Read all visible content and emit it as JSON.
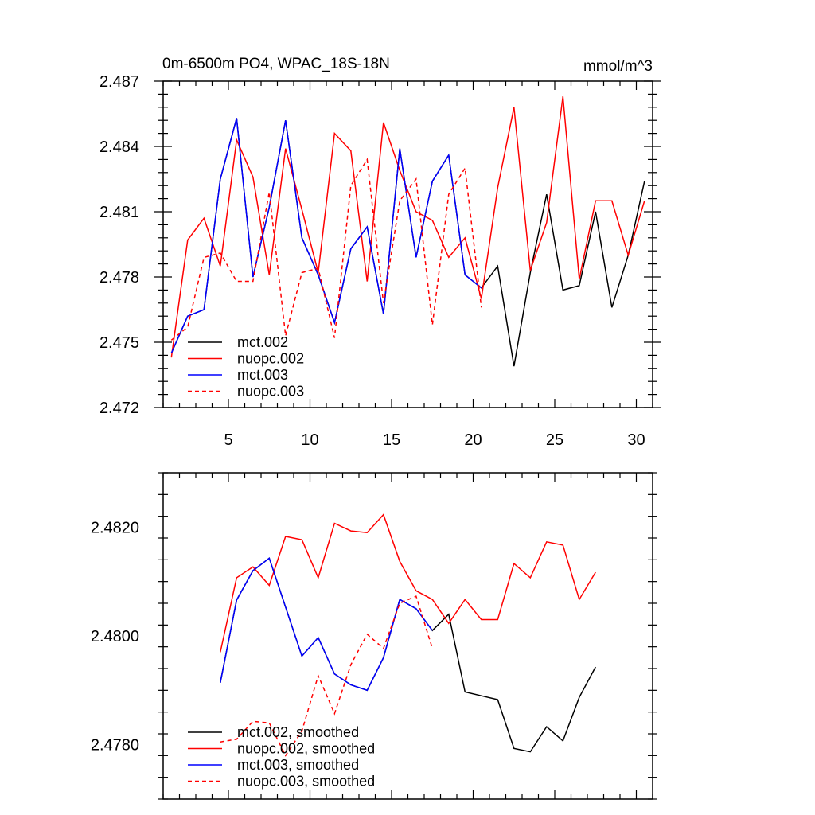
{
  "chart_data": [
    {
      "type": "line",
      "title": "0m-6500m PO4, WPAC_18S-18N",
      "units": "mmol/m^3",
      "xlim": [
        1,
        31
      ],
      "ylim": [
        2.472,
        2.487
      ],
      "x_ticks": [
        5,
        10,
        15,
        20,
        25,
        30
      ],
      "y_ticks": [
        2.472,
        2.475,
        2.478,
        2.481,
        2.484,
        2.487
      ],
      "y_tick_labels": [
        "2.472",
        "2.475",
        "2.478",
        "2.481",
        "2.484",
        "2.487"
      ],
      "legend": "bottom-left",
      "series": [
        {
          "name": "mct.002",
          "color": "#000000",
          "dash": "solid",
          "x": [
            1.5,
            2.5,
            3.5,
            4.5,
            5.5,
            6.5,
            7.5,
            8.5,
            9.5,
            10.5,
            11.5,
            12.5,
            13.5,
            14.5,
            15.5,
            16.5,
            17.5,
            18.5,
            19.5,
            20.5,
            21.5,
            22.5,
            23.5,
            24.5,
            25.5,
            26.5,
            27.5,
            28.5,
            29.5,
            30.5
          ],
          "y": [
            2.4745,
            2.4762,
            2.4765,
            2.4825,
            2.4853,
            2.478,
            2.4812,
            2.4852,
            2.4798,
            2.4781,
            2.4759,
            2.4793,
            2.4803,
            2.4763,
            2.4839,
            2.4789,
            2.4824,
            2.4836,
            2.4781,
            2.4775,
            2.4785,
            2.4739,
            2.4782,
            2.4818,
            2.4774,
            2.4776,
            2.481,
            2.4766,
            2.479,
            2.4824
          ]
        },
        {
          "name": "nuopc.002",
          "color": "#ff0000",
          "dash": "solid",
          "x": [
            1.5,
            2.5,
            3.5,
            4.5,
            5.5,
            6.5,
            7.5,
            8.5,
            9.5,
            10.5,
            11.5,
            12.5,
            13.5,
            14.5,
            15.5,
            16.5,
            17.5,
            18.5,
            19.5,
            20.5,
            21.5,
            22.5,
            23.5,
            24.5,
            25.5,
            26.5,
            27.5,
            28.5,
            29.5,
            30.5
          ],
          "y": [
            2.4743,
            2.4797,
            2.4807,
            2.4785,
            2.4843,
            2.4826,
            2.4781,
            2.4839,
            2.4811,
            2.4782,
            2.4846,
            2.4838,
            2.4778,
            2.4851,
            2.4829,
            2.481,
            2.4806,
            2.4789,
            2.4798,
            2.477,
            2.4821,
            2.4858,
            2.4783,
            2.4805,
            2.4863,
            2.4779,
            2.4815,
            2.4815,
            2.479,
            2.4815
          ]
        },
        {
          "name": "mct.003",
          "color": "#0000ff",
          "dash": "solid",
          "x": [
            1.5,
            2.5,
            3.5,
            4.5,
            5.5,
            6.5,
            7.5,
            8.5,
            9.5,
            10.5,
            11.5,
            12.5,
            13.5,
            14.5,
            15.5,
            16.5,
            17.5,
            18.5,
            19.5,
            20.5
          ],
          "y": [
            2.4745,
            2.4762,
            2.4765,
            2.4825,
            2.4853,
            2.478,
            2.4812,
            2.4852,
            2.4798,
            2.4781,
            2.4759,
            2.4793,
            2.4803,
            2.4763,
            2.4839,
            2.4789,
            2.4824,
            2.4836,
            2.4781,
            2.4775
          ]
        },
        {
          "name": "nuopc.003",
          "color": "#ff0000",
          "dash": "dashed",
          "x": [
            1.5,
            2.5,
            3.5,
            4.5,
            5.5,
            6.5,
            7.5,
            8.5,
            9.5,
            10.5,
            11.5,
            12.5,
            13.5,
            14.5,
            15.5,
            16.5,
            17.5,
            18.5,
            19.5,
            20.5
          ],
          "y": [
            2.4751,
            2.4757,
            2.4789,
            2.4791,
            2.4778,
            2.4778,
            2.4819,
            2.4753,
            2.4782,
            2.4784,
            2.4752,
            2.4822,
            2.4834,
            2.4768,
            2.4815,
            2.4825,
            2.4758,
            2.4818,
            2.483,
            2.4766
          ]
        }
      ]
    },
    {
      "type": "line",
      "title": "",
      "units": "",
      "xlim": [
        1,
        31
      ],
      "ylim": [
        2.477,
        2.483
      ],
      "x_ticks": [
        5,
        10,
        15,
        20,
        25,
        30
      ],
      "y_ticks": [
        2.478,
        2.48,
        2.482
      ],
      "y_tick_labels": [
        "2.4780",
        "2.4800",
        "2.4820"
      ],
      "legend": "bottom-left",
      "series": [
        {
          "name": "mct.002, smoothed",
          "color": "#000000",
          "dash": "solid",
          "x": [
            4.5,
            5.5,
            6.5,
            7.5,
            8.5,
            9.5,
            10.5,
            11.5,
            12.5,
            13.5,
            14.5,
            15.5,
            16.5,
            17.5,
            18.5,
            19.5,
            20.5,
            21.5,
            22.5,
            23.5,
            24.5,
            25.5,
            26.5,
            27.5
          ],
          "y": [
            2.47914,
            2.48066,
            2.4812,
            2.48143,
            2.48053,
            2.47963,
            2.47997,
            2.4793,
            2.4791,
            2.479,
            2.4796,
            2.48067,
            2.4805,
            2.4801,
            2.4804,
            2.47897,
            2.4789,
            2.47883,
            2.47793,
            2.47787,
            2.47833,
            2.47807,
            2.47887,
            2.47943
          ]
        },
        {
          "name": "nuopc.002, smoothed",
          "color": "#ff0000",
          "dash": "solid",
          "x": [
            4.5,
            5.5,
            6.5,
            7.5,
            8.5,
            9.5,
            10.5,
            11.5,
            12.5,
            13.5,
            14.5,
            15.5,
            16.5,
            17.5,
            18.5,
            19.5,
            20.5,
            21.5,
            22.5,
            23.5,
            24.5,
            25.5,
            26.5,
            27.5
          ],
          "y": [
            2.4797,
            2.48107,
            2.48127,
            2.48093,
            2.48183,
            2.48177,
            2.48107,
            2.48207,
            2.48193,
            2.4819,
            2.48223,
            2.48137,
            2.48083,
            2.48067,
            2.48023,
            2.48067,
            2.4803,
            2.4803,
            2.48133,
            2.48107,
            2.48173,
            2.48167,
            2.48067,
            2.48117
          ]
        },
        {
          "name": "mct.003, smoothed",
          "color": "#0000ff",
          "dash": "solid",
          "x": [
            4.5,
            5.5,
            6.5,
            7.5,
            8.5,
            9.5,
            10.5,
            11.5,
            12.5,
            13.5,
            14.5,
            15.5,
            16.5,
            17.5
          ],
          "y": [
            2.47914,
            2.48066,
            2.4812,
            2.48143,
            2.48053,
            2.47963,
            2.47997,
            2.4793,
            2.4791,
            2.479,
            2.4796,
            2.48067,
            2.4805,
            2.4801
          ]
        },
        {
          "name": "nuopc.003, smoothed",
          "color": "#ff0000",
          "dash": "dashed",
          "x": [
            4.5,
            5.5,
            6.5,
            7.5,
            8.5,
            9.5,
            10.5,
            11.5,
            12.5,
            13.5,
            14.5,
            15.5,
            16.5,
            17.5
          ],
          "y": [
            2.47805,
            2.4781,
            2.47843,
            2.4784,
            2.4778,
            2.47825,
            2.47927,
            2.47857,
            2.47947,
            2.48003,
            2.47977,
            2.4806,
            2.48073,
            2.47977
          ]
        }
      ]
    }
  ]
}
